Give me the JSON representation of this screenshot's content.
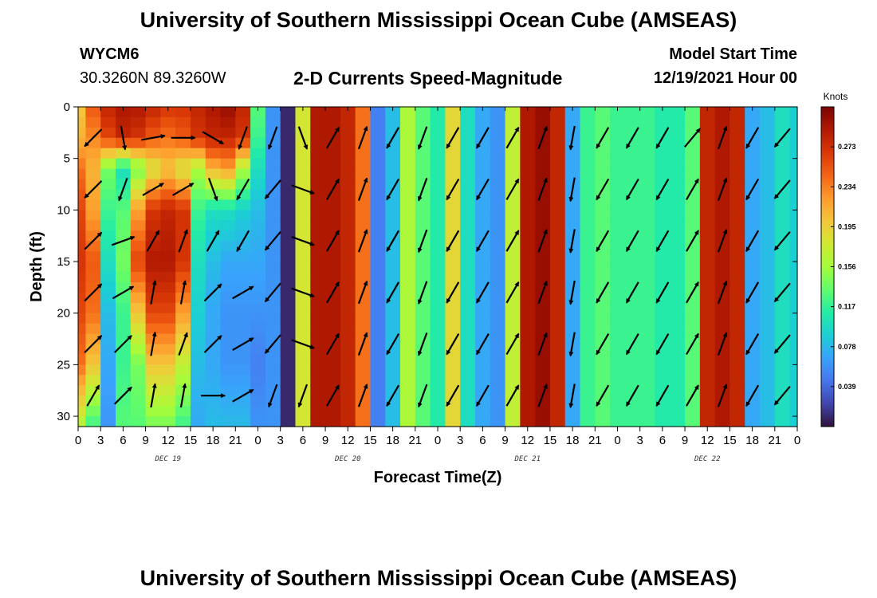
{
  "header": {
    "title": "University of Southern Mississippi Ocean Cube (AMSEAS)",
    "station_id": "WYCM6",
    "coordinates": "30.3260N  89.3260W",
    "chart_title": "2-D Currents Speed-Magnitude",
    "model_start_label": "Model Start Time",
    "model_start_value": "12/19/2021 Hour 00"
  },
  "footer": {
    "title": "University of Southern Mississippi Ocean Cube (AMSEAS)"
  },
  "chart_data": {
    "type": "heatmap",
    "title": "2-D Currents Speed-Magnitude",
    "xlabel": "Forecast Time(Z)",
    "ylabel": "Depth (ft)",
    "xlim": [
      0,
      96
    ],
    "ylim": [
      31,
      0
    ],
    "x_ticks": [
      0,
      3,
      6,
      9,
      12,
      15,
      18,
      21,
      24,
      27,
      30,
      33,
      36,
      39,
      42,
      45,
      48,
      51,
      54,
      57,
      60,
      63,
      66,
      69,
      72,
      75,
      78,
      81,
      84,
      87,
      90,
      93,
      96
    ],
    "x_tick_labels": [
      "0",
      "3",
      "6",
      "9",
      "12",
      "15",
      "18",
      "21",
      "0",
      "3",
      "6",
      "9",
      "12",
      "15",
      "18",
      "21",
      "0",
      "3",
      "6",
      "9",
      "12",
      "15",
      "18",
      "21",
      "0",
      "3",
      "6",
      "9",
      "12",
      "15",
      "18",
      "21",
      "0"
    ],
    "y_ticks": [
      0,
      5,
      10,
      15,
      20,
      25,
      30
    ],
    "y_tick_labels": [
      "0",
      "5",
      "10",
      "15",
      "20",
      "25",
      "30"
    ],
    "day_labels": [
      {
        "label": "DEC 19",
        "hour": 12
      },
      {
        "label": "DEC 20",
        "hour": 36
      },
      {
        "label": "DEC 21",
        "hour": 60
      },
      {
        "label": "DEC 22",
        "hour": 84
      }
    ],
    "colorbar": {
      "unit": "Knots",
      "min": 0.0,
      "max": 0.312,
      "tick_values": [
        0.273,
        0.234,
        0.195,
        0.156,
        0.117,
        0.078,
        0.039
      ],
      "tick_labels": [
        "0.273",
        "0.234",
        "0.195",
        "0.156",
        "0.117",
        "0.078",
        "0.039"
      ]
    },
    "hours": [
      0,
      2,
      4,
      6,
      8,
      10,
      12,
      14,
      16,
      18,
      20,
      22,
      24,
      26,
      28,
      30,
      32,
      34,
      36,
      38,
      40,
      42,
      44,
      46,
      48,
      50,
      52,
      54,
      56,
      58,
      60,
      62,
      64,
      66,
      68,
      70,
      72,
      74,
      76,
      78,
      80,
      82,
      84,
      86,
      88,
      90,
      92,
      94,
      96
    ],
    "depth_profile": {
      "depths": [
        0,
        3,
        6,
        10,
        15,
        20,
        25,
        31
      ],
      "note": "speed in knots (columns x depth) for first day; later days vertically uniform",
      "early_columns": {
        "0": [
          0.2,
          0.21,
          0.24,
          0.26,
          0.27,
          0.26,
          0.24,
          0.16
        ],
        "2": [
          0.25,
          0.23,
          0.21,
          0.22,
          0.25,
          0.24,
          0.2,
          0.12
        ],
        "4": [
          0.28,
          0.26,
          0.14,
          0.12,
          0.1,
          0.08,
          0.07,
          0.06
        ],
        "6": [
          0.29,
          0.28,
          0.1,
          0.13,
          0.14,
          0.12,
          0.12,
          0.13
        ],
        "8": [
          0.29,
          0.27,
          0.14,
          0.22,
          0.26,
          0.2,
          0.14,
          0.13
        ],
        "10": [
          0.28,
          0.25,
          0.18,
          0.27,
          0.29,
          0.26,
          0.2,
          0.14
        ],
        "12": [
          0.27,
          0.24,
          0.2,
          0.28,
          0.29,
          0.26,
          0.2,
          0.14
        ],
        "14": [
          0.27,
          0.25,
          0.18,
          0.27,
          0.27,
          0.22,
          0.17,
          0.12
        ],
        "16": [
          0.28,
          0.27,
          0.16,
          0.12,
          0.1,
          0.09,
          0.08,
          0.07
        ],
        "18": [
          0.29,
          0.28,
          0.21,
          0.1,
          0.08,
          0.07,
          0.07,
          0.08
        ],
        "20": [
          0.3,
          0.28,
          0.22,
          0.1,
          0.07,
          0.06,
          0.06,
          0.08
        ],
        "22": [
          0.28,
          0.27,
          0.16,
          0.09,
          0.07,
          0.06,
          0.06,
          0.08
        ],
        "24": [
          0.13,
          0.12,
          0.1,
          0.08,
          0.07,
          0.06,
          0.05,
          0.06
        ]
      },
      "later_columns_uniform": {
        "26": 0.06,
        "28": 0.01,
        "30": 0.18,
        "32": 0.29,
        "34": 0.29,
        "36": 0.28,
        "38": 0.24,
        "40": 0.05,
        "42": 0.08,
        "44": 0.16,
        "46": 0.13,
        "48": 0.11,
        "50": 0.19,
        "52": 0.1,
        "54": 0.07,
        "56": 0.06,
        "58": 0.17,
        "60": 0.29,
        "62": 0.3,
        "64": 0.28,
        "66": 0.07,
        "68": 0.12,
        "70": 0.13,
        "72": 0.12,
        "74": 0.12,
        "76": 0.12,
        "78": 0.11,
        "80": 0.11,
        "82": 0.13,
        "84": 0.28,
        "86": 0.29,
        "88": 0.28,
        "90": 0.07,
        "92": 0.08,
        "94": 0.1,
        "96": 0.09
      }
    },
    "vectors": {
      "note": "current direction arrows (degrees, compass-to), sampled at columns/depths",
      "depths": [
        3,
        8,
        13,
        18,
        23,
        28
      ],
      "columns": [
        {
          "hour": 2,
          "dirs": [
            225,
            225,
            45,
            45,
            45,
            30
          ]
        },
        {
          "hour": 6,
          "dirs": [
            170,
            200,
            70,
            60,
            45,
            45
          ]
        },
        {
          "hour": 10,
          "dirs": [
            80,
            60,
            30,
            10,
            10,
            10
          ]
        },
        {
          "hour": 14,
          "dirs": [
            90,
            60,
            20,
            10,
            20,
            10
          ]
        },
        {
          "hour": 18,
          "dirs": [
            120,
            160,
            30,
            45,
            45,
            90
          ]
        },
        {
          "hour": 22,
          "dirs": [
            200,
            210,
            210,
            60,
            60,
            60
          ]
        },
        {
          "hour": 26,
          "dirs": [
            200,
            220,
            220,
            220,
            220,
            200
          ]
        },
        {
          "hour": 30,
          "dirs": [
            160,
            110,
            110,
            110,
            110,
            200
          ]
        },
        {
          "hour": 34,
          "dirs": [
            30,
            30,
            30,
            30,
            30,
            30
          ]
        },
        {
          "hour": 38,
          "dirs": [
            20,
            20,
            20,
            20,
            20,
            20
          ]
        },
        {
          "hour": 42,
          "dirs": [
            210,
            210,
            210,
            210,
            210,
            210
          ]
        },
        {
          "hour": 46,
          "dirs": [
            200,
            200,
            200,
            200,
            200,
            200
          ]
        },
        {
          "hour": 50,
          "dirs": [
            210,
            210,
            210,
            210,
            210,
            210
          ]
        },
        {
          "hour": 54,
          "dirs": [
            210,
            210,
            210,
            210,
            210,
            210
          ]
        },
        {
          "hour": 58,
          "dirs": [
            30,
            30,
            30,
            30,
            30,
            30
          ]
        },
        {
          "hour": 62,
          "dirs": [
            20,
            20,
            20,
            20,
            20,
            20
          ]
        },
        {
          "hour": 66,
          "dirs": [
            190,
            190,
            190,
            190,
            190,
            190
          ]
        },
        {
          "hour": 70,
          "dirs": [
            210,
            210,
            210,
            210,
            210,
            210
          ]
        },
        {
          "hour": 74,
          "dirs": [
            210,
            210,
            210,
            210,
            210,
            210
          ]
        },
        {
          "hour": 78,
          "dirs": [
            210,
            210,
            210,
            210,
            210,
            210
          ]
        },
        {
          "hour": 82,
          "dirs": [
            40,
            30,
            30,
            30,
            30,
            30
          ]
        },
        {
          "hour": 86,
          "dirs": [
            20,
            20,
            20,
            20,
            20,
            20
          ]
        },
        {
          "hour": 90,
          "dirs": [
            210,
            210,
            210,
            210,
            210,
            210
          ]
        },
        {
          "hour": 94,
          "dirs": [
            220,
            220,
            220,
            220,
            220,
            220
          ]
        }
      ]
    }
  },
  "colors": {
    "colormap": [
      "#30123b",
      "#4145ab",
      "#4675ed",
      "#39a2fc",
      "#1bcfd4",
      "#24eca6",
      "#61fc6c",
      "#a4fc3b",
      "#d1e834",
      "#f3c63a",
      "#fe9b2d",
      "#f36315",
      "#d93806",
      "#b11901",
      "#7a0403"
    ]
  }
}
